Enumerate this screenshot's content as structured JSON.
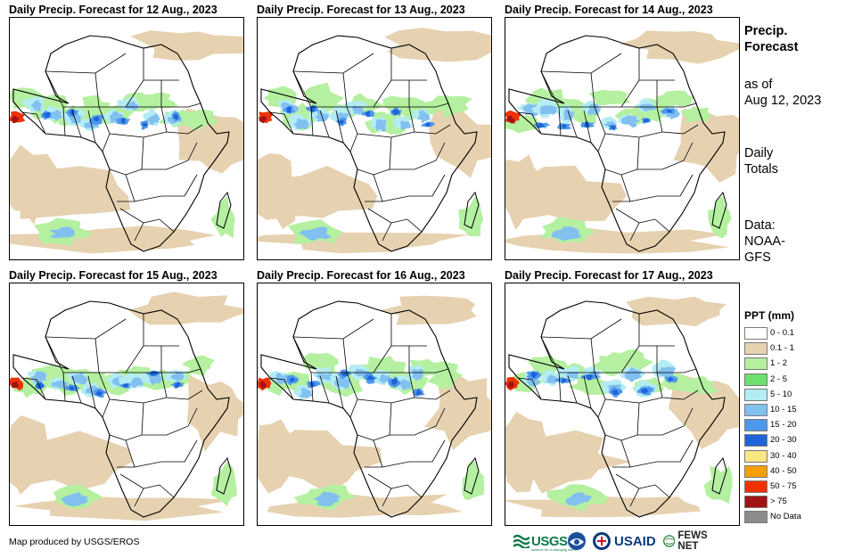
{
  "panels": [
    {
      "title": "Daily Precip. Forecast for 12 Aug., 2023"
    },
    {
      "title": "Daily Precip. Forecast for 13 Aug., 2023"
    },
    {
      "title": "Daily Precip. Forecast for 14 Aug., 2023"
    },
    {
      "title": "Daily Precip. Forecast for 15 Aug., 2023"
    },
    {
      "title": "Daily Precip. Forecast for 16 Aug., 2023"
    },
    {
      "title": "Daily Precip. Forecast for 17 Aug., 2023"
    }
  ],
  "side": {
    "heading_line1": "Precip.",
    "heading_line2": "Forecast",
    "asof_line1": "as of",
    "asof_line2": "Aug 12, 2023",
    "totals_line1": "Daily",
    "totals_line2": "Totals",
    "data_line1": "Data:",
    "data_line2": "NOAA-",
    "data_line3": "GFS"
  },
  "legend": {
    "title": "PPT (mm)",
    "items": [
      {
        "label": "0 - 0.1",
        "color": "#ffffff"
      },
      {
        "label": "0.1 - 1",
        "color": "#e6d2b0"
      },
      {
        "label": "1 - 2",
        "color": "#b4f0a0"
      },
      {
        "label": "2 - 5",
        "color": "#6ee06e"
      },
      {
        "label": "5 - 10",
        "color": "#b4ecf4"
      },
      {
        "label": "10 - 15",
        "color": "#82c0f0"
      },
      {
        "label": "15 - 20",
        "color": "#4e98ec"
      },
      {
        "label": "20 - 30",
        "color": "#1e64d8"
      },
      {
        "label": "30 - 40",
        "color": "#fae682"
      },
      {
        "label": "40 - 50",
        "color": "#f5a000"
      },
      {
        "label": "50 - 75",
        "color": "#f03200"
      },
      {
        "label": "> 75",
        "color": "#a01414"
      },
      {
        "label": "No Data",
        "color": "#8c8c8c"
      }
    ]
  },
  "credit": "Map produced by USGS/EROS",
  "logos": {
    "usgs": "USGS",
    "usgs_tag": "science for a changing world",
    "usaid": "USAID",
    "fewsnet": "FEWS NET"
  },
  "colors": {
    "sand": "#e6d2b0",
    "light_green": "#b4f0a0",
    "green": "#6ee06e",
    "cyan": "#b4ecf4",
    "light_blue": "#82c0f0",
    "blue": "#4e98ec",
    "dark_blue": "#1e64d8",
    "red": "#f03200",
    "dark_red": "#a01414"
  }
}
